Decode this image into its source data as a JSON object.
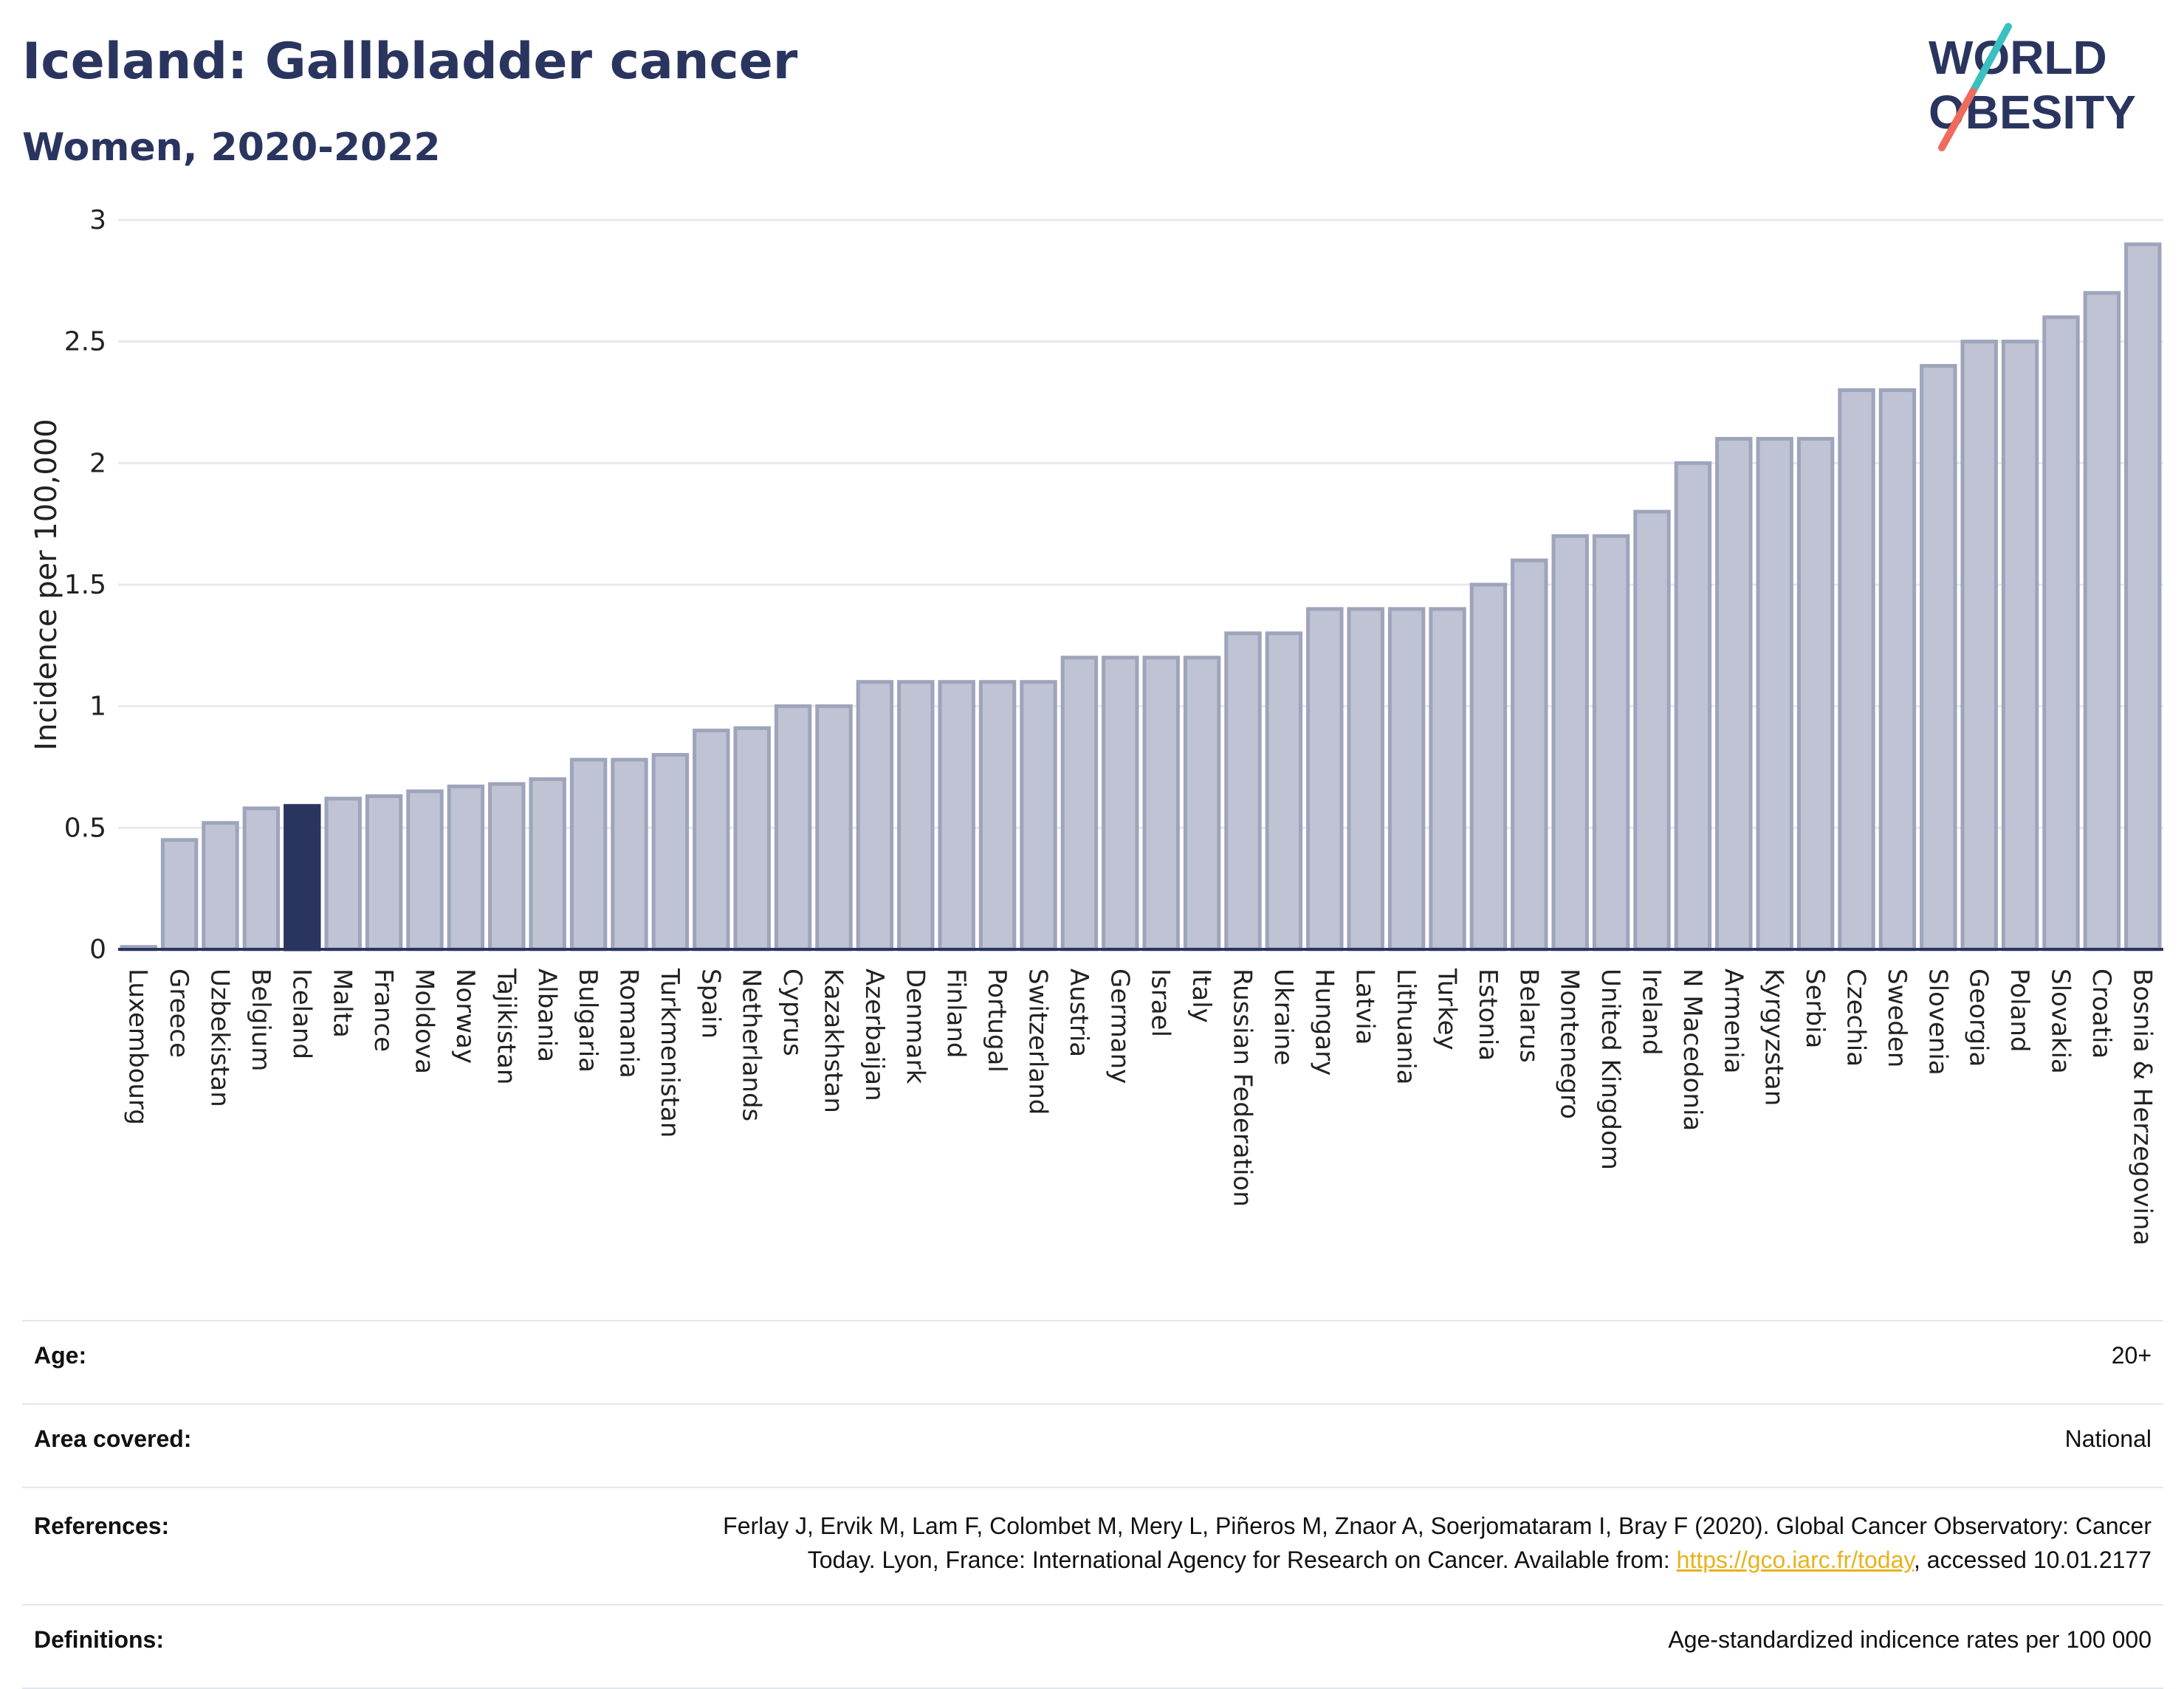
{
  "header": {
    "title": "Iceland: Gallbladder cancer",
    "subtitle": "Women, 2020-2022",
    "logo_text_line1": "WORLD",
    "logo_text_line2": "OBESITY"
  },
  "chart_data": {
    "type": "bar",
    "title": "Iceland: Gallbladder cancer",
    "subtitle": "Women, 2020-2022",
    "ylabel": "Incidence per 100,000",
    "xlabel": "",
    "ylim": [
      0,
      3
    ],
    "yticks": [
      0,
      0.5,
      1,
      1.5,
      2,
      2.5,
      3
    ],
    "ytick_labels": [
      "0",
      "0.5",
      "1",
      "1.5",
      "2",
      "2.5",
      "3"
    ],
    "grid": true,
    "highlight": "Iceland",
    "categories": [
      "Luxembourg",
      "Greece",
      "Uzbekistan",
      "Belgium",
      "Iceland",
      "Malta",
      "France",
      "Moldova",
      "Norway",
      "Tajikistan",
      "Albania",
      "Bulgaria",
      "Romania",
      "Turkmenistan",
      "Spain",
      "Netherlands",
      "Cyprus",
      "Kazakhstan",
      "Azerbaijan",
      "Denmark",
      "Finland",
      "Portugal",
      "Switzerland",
      "Austria",
      "Germany",
      "Israel",
      "Italy",
      "Russian Federation",
      "Ukraine",
      "Hungary",
      "Latvia",
      "Lithuania",
      "Turkey",
      "Estonia",
      "Belarus",
      "Montenegro",
      "United Kingdom",
      "Ireland",
      "N Macedonia",
      "Armenia",
      "Kyrgyzstan",
      "Serbia",
      "Czechia",
      "Sweden",
      "Slovenia",
      "Georgia",
      "Poland",
      "Slovakia",
      "Croatia",
      "Bosnia & Herzegovina"
    ],
    "values": [
      0.01,
      0.45,
      0.52,
      0.58,
      0.59,
      0.62,
      0.63,
      0.65,
      0.67,
      0.68,
      0.7,
      0.78,
      0.78,
      0.8,
      0.9,
      0.91,
      1.0,
      1.0,
      1.1,
      1.1,
      1.1,
      1.1,
      1.1,
      1.2,
      1.2,
      1.2,
      1.2,
      1.3,
      1.3,
      1.4,
      1.4,
      1.4,
      1.4,
      1.5,
      1.6,
      1.7,
      1.7,
      1.8,
      2.0,
      2.1,
      2.1,
      2.1,
      2.3,
      2.3,
      2.4,
      2.5,
      2.5,
      2.6,
      2.7,
      2.9
    ],
    "colors": {
      "bar": "#bfc3d3",
      "bar_edge": "#9ea4bb",
      "highlight": "#2a355f",
      "axis": "#2a355f",
      "grid": "#e6e8ee"
    }
  },
  "info": {
    "age_label": "Age:",
    "age_value": "20+",
    "area_label": "Area covered:",
    "area_value": "National",
    "references_label": "References:",
    "references_line1": "Ferlay J, Ervik M, Lam F, Colombet M, Mery L, Piñeros M, Znaor A, Soerjomataram I, Bray F (2020). Global Cancer Observatory: Cancer",
    "references_line2_pre": "Today. Lyon, France: International Agency for Research on Cancer. Available from: ",
    "references_link": "https://gco.iarc.fr/today",
    "references_line2_post": ", accessed 10.01.2177",
    "definitions_label": "Definitions:",
    "definitions_value": "Age-standardized indicence rates per 100 000"
  }
}
